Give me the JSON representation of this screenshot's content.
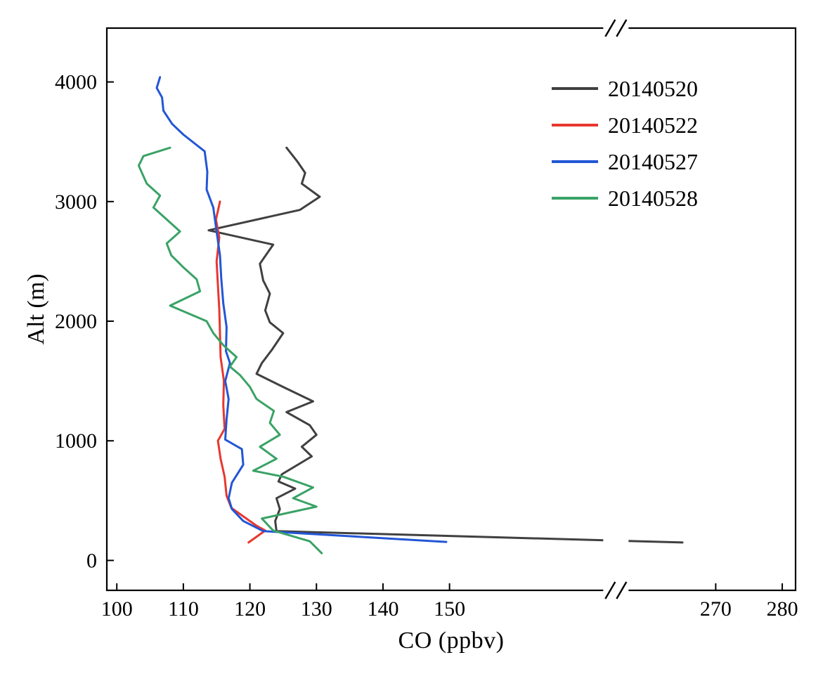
{
  "figure": {
    "kind": "line-profile-plot"
  },
  "chart_data": {
    "type": "line",
    "title": "",
    "xlabel": "CO (ppbv)",
    "ylabel": "Alt (m)",
    "x_ticks": [
      100,
      110,
      120,
      130,
      140,
      150,
      270,
      280
    ],
    "x_break": {
      "from": 175,
      "to": 255
    },
    "x_domain": [
      98.5,
      282
    ],
    "y_ticks": [
      0,
      1000,
      2000,
      3000,
      4000
    ],
    "y_domain": [
      -250,
      4450
    ],
    "grid": false,
    "legend_position": "top-right-inside",
    "series": [
      {
        "name": "20140520",
        "color": "#404040",
        "points": [
          [
            265,
            150
          ],
          [
            124,
            245
          ],
          [
            123.8,
            330
          ],
          [
            124.5,
            430
          ],
          [
            124,
            520
          ],
          [
            126.8,
            600
          ],
          [
            124.3,
            660
          ],
          [
            124.8,
            720
          ],
          [
            129.3,
            870
          ],
          [
            127.8,
            950
          ],
          [
            130,
            1050
          ],
          [
            129,
            1130
          ],
          [
            125.5,
            1240
          ],
          [
            129.5,
            1330
          ],
          [
            125,
            1450
          ],
          [
            121,
            1560
          ],
          [
            121.8,
            1650
          ],
          [
            123.3,
            1760
          ],
          [
            125,
            1900
          ],
          [
            123,
            1990
          ],
          [
            122.3,
            2090
          ],
          [
            123,
            2230
          ],
          [
            122,
            2340
          ],
          [
            121.5,
            2480
          ],
          [
            123.5,
            2640
          ],
          [
            113.8,
            2760
          ],
          [
            127.5,
            2930
          ],
          [
            130.5,
            3040
          ],
          [
            127.8,
            3150
          ],
          [
            128.3,
            3240
          ],
          [
            127.2,
            3330
          ],
          [
            125.5,
            3450
          ]
        ]
      },
      {
        "name": "20140522",
        "color": "#e8372f",
        "points": [
          [
            119.8,
            150
          ],
          [
            122.3,
            250
          ],
          [
            121,
            290
          ],
          [
            117.2,
            440
          ],
          [
            116.5,
            540
          ],
          [
            116.2,
            700
          ],
          [
            115.6,
            850
          ],
          [
            115.2,
            1000
          ],
          [
            116.2,
            1100
          ],
          [
            116,
            1300
          ],
          [
            116.1,
            1500
          ],
          [
            115.6,
            1700
          ],
          [
            115.5,
            1900
          ],
          [
            115.4,
            2100
          ],
          [
            115.2,
            2300
          ],
          [
            115,
            2500
          ],
          [
            115.4,
            2700
          ],
          [
            114.9,
            2850
          ],
          [
            115.5,
            3000
          ]
        ]
      },
      {
        "name": "20140527",
        "color": "#2256d5",
        "points": [
          [
            149.5,
            155
          ],
          [
            122,
            245
          ],
          [
            119,
            330
          ],
          [
            117.3,
            430
          ],
          [
            116.8,
            520
          ],
          [
            117.3,
            650
          ],
          [
            119,
            800
          ],
          [
            118.8,
            930
          ],
          [
            116.3,
            1010
          ],
          [
            116.5,
            1180
          ],
          [
            116.8,
            1350
          ],
          [
            116.3,
            1500
          ],
          [
            117,
            1650
          ],
          [
            116.4,
            1750
          ],
          [
            116.5,
            1950
          ],
          [
            116,
            2150
          ],
          [
            115.7,
            2350
          ],
          [
            115.5,
            2550
          ],
          [
            115,
            2750
          ],
          [
            114.5,
            2950
          ],
          [
            113.5,
            3100
          ],
          [
            113.6,
            3250
          ],
          [
            113.2,
            3420
          ],
          [
            110,
            3560
          ],
          [
            108.3,
            3650
          ],
          [
            107,
            3760
          ],
          [
            106.8,
            3870
          ],
          [
            106,
            3950
          ],
          [
            106.5,
            4040
          ]
        ]
      },
      {
        "name": "20140528",
        "color": "#3aa266",
        "points": [
          [
            130.8,
            60
          ],
          [
            129,
            160
          ],
          [
            123.5,
            250
          ],
          [
            121.8,
            350
          ],
          [
            130,
            450
          ],
          [
            126.5,
            520
          ],
          [
            129.5,
            610
          ],
          [
            125,
            700
          ],
          [
            120.5,
            750
          ],
          [
            124,
            850
          ],
          [
            121.5,
            950
          ],
          [
            124.5,
            1050
          ],
          [
            123,
            1150
          ],
          [
            123.6,
            1250
          ],
          [
            121,
            1350
          ],
          [
            120,
            1450
          ],
          [
            118.5,
            1550
          ],
          [
            117,
            1620
          ],
          [
            118,
            1700
          ],
          [
            116,
            1800
          ],
          [
            114.5,
            1900
          ],
          [
            113.5,
            2000
          ],
          [
            108,
            2130
          ],
          [
            112.5,
            2250
          ],
          [
            112,
            2350
          ],
          [
            110,
            2450
          ],
          [
            108.2,
            2550
          ],
          [
            107.5,
            2650
          ],
          [
            109.5,
            2750
          ],
          [
            107.5,
            2850
          ],
          [
            105.5,
            2950
          ],
          [
            106.5,
            3050
          ],
          [
            104.5,
            3150
          ],
          [
            103.3,
            3300
          ],
          [
            104,
            3380
          ],
          [
            108,
            3450
          ]
        ]
      }
    ]
  }
}
